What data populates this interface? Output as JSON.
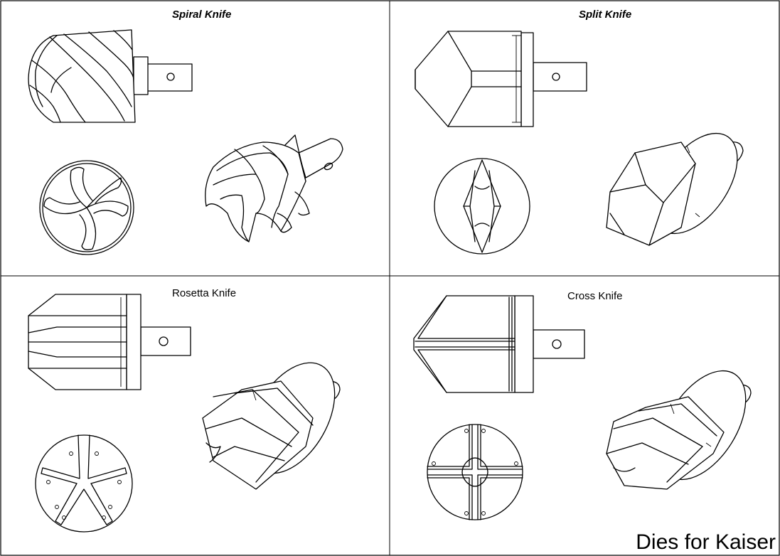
{
  "panels": {
    "spiral": {
      "title": "Spiral Knife"
    },
    "split": {
      "title": "Split Knife"
    },
    "rosetta": {
      "title": "Rosetta Knife"
    },
    "cross": {
      "title": "Cross Knife"
    }
  },
  "caption": "Dies for Kaiser"
}
